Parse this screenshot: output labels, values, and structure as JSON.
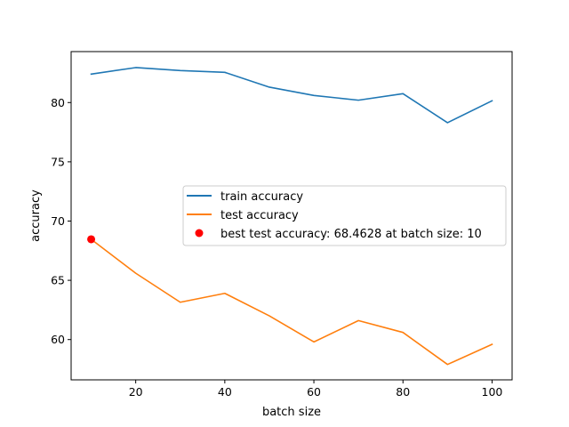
{
  "chart_data": {
    "type": "line",
    "xlabel": "batch size",
    "ylabel": "accuracy",
    "xlim": [
      5.5,
      104.5
    ],
    "ylim": [
      56.6,
      84.3
    ],
    "xticks": [
      20,
      40,
      60,
      80,
      100
    ],
    "yticks": [
      60,
      65,
      70,
      75,
      80
    ],
    "x": [
      10,
      20,
      30,
      40,
      50,
      60,
      70,
      80,
      90,
      100
    ],
    "series": [
      {
        "name": "train accuracy",
        "color": "#1f77b4",
        "values": [
          82.4,
          82.95,
          82.7,
          82.55,
          81.3,
          80.6,
          80.2,
          80.75,
          78.3,
          80.15
        ]
      },
      {
        "name": "test accuracy",
        "color": "#ff7f0e",
        "values": [
          68.46,
          65.6,
          63.15,
          63.9,
          62.0,
          59.8,
          61.6,
          60.6,
          57.9,
          59.6
        ]
      }
    ],
    "highlight": {
      "name": "best test accuracy: 68.4628 at batch size: 10",
      "x": 10,
      "y": 68.4628,
      "color": "#ff0000"
    },
    "legend_position": "center-right",
    "grid": false
  }
}
